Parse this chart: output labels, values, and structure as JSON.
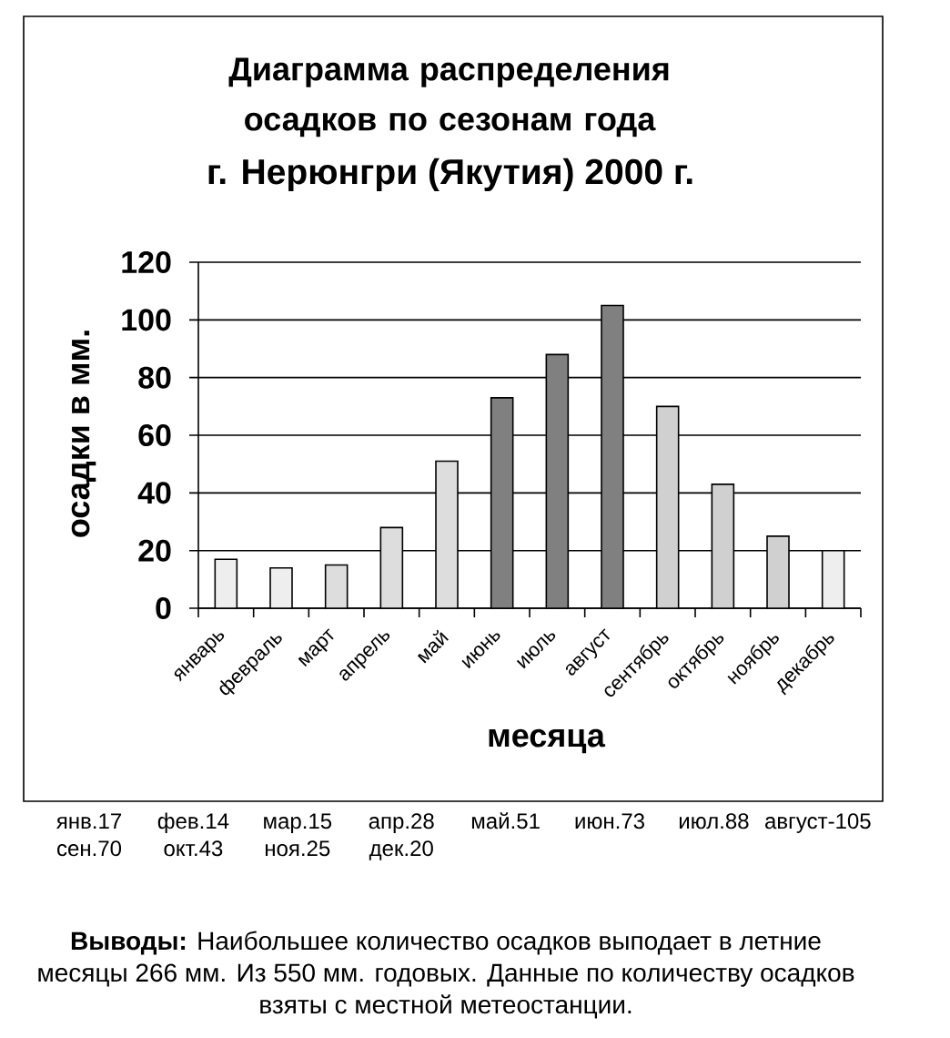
{
  "chart_data": {
    "type": "bar",
    "title": "Диаграмма распределения осадков по сезонам года",
    "subtitle": "г. Нерюнгри (Якутия) 2000 г.",
    "xlabel": "месяца",
    "ylabel": "осадки в мм.",
    "categories": [
      "январь",
      "февраль",
      "март",
      "апрель",
      "май",
      "июнь",
      "июль",
      "август",
      "сентябрь",
      "октябрь",
      "ноябрь",
      "декабрь"
    ],
    "values": [
      17,
      14,
      15,
      28,
      51,
      73,
      88,
      105,
      70,
      43,
      25,
      20
    ],
    "colors": [
      "#eeeeee",
      "#eeeeee",
      "#dddddd",
      "#dddddd",
      "#dddddd",
      "#808080",
      "#808080",
      "#808080",
      "#d0d0d0",
      "#d0d0d0",
      "#d0d0d0",
      "#eeeeee"
    ],
    "ylim": [
      0,
      120
    ],
    "yticks": [
      0,
      20,
      40,
      60,
      80,
      100,
      120
    ],
    "grid": "y",
    "annotations": [
      "янв.17",
      "фев.14",
      "мар.15",
      "апр.28",
      "май.51",
      "июн.73",
      "июл.88",
      "август-105",
      "сен.70",
      "окт.43",
      "ноя.25",
      "дек.20",
      "**Выводы:** Наибольшее количество осадков выподает в летние месяцы 266 мм. Из 550 мм. годовых. Данные по количеству осадков взяты с местной метеостанции."
    ]
  }
}
